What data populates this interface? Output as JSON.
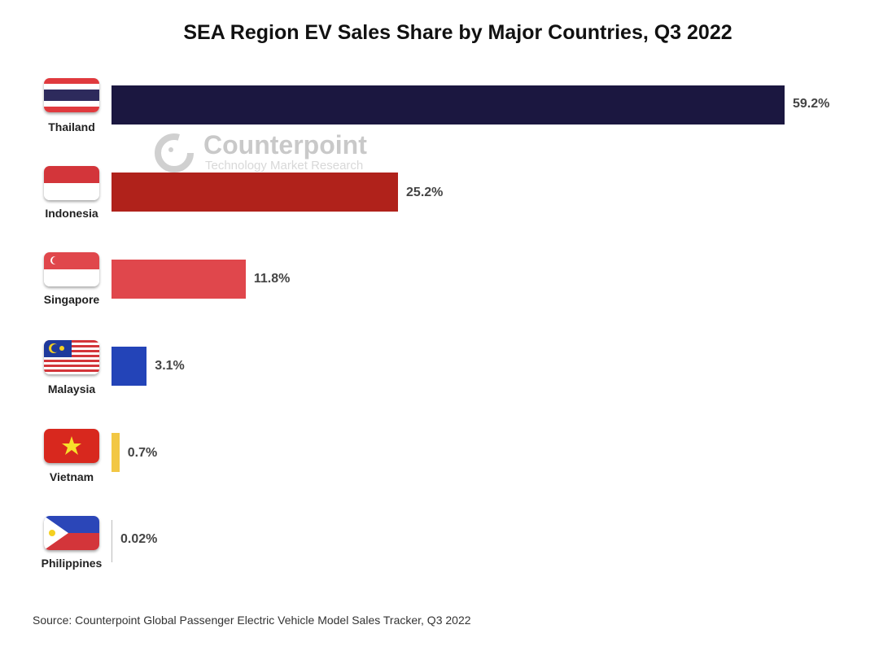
{
  "chart_data": {
    "type": "bar",
    "orientation": "horizontal",
    "title": "SEA Region EV Sales Share by Major Countries, Q3 2022",
    "categories": [
      "Thailand",
      "Indonesia",
      "Singapore",
      "Malaysia",
      "Vietnam",
      "Philippines"
    ],
    "values": [
      59.2,
      25.2,
      11.8,
      3.1,
      0.7,
      0.02
    ],
    "value_labels": [
      "59.2%",
      "25.2%",
      "11.8%",
      "3.1%",
      "0.7%",
      "0.02%"
    ],
    "colors": [
      "#1b1740",
      "#b0221b",
      "#e0474c",
      "#2344b8",
      "#f2c744",
      "#bbbbbb"
    ],
    "unit": "%",
    "xlabel": "",
    "ylabel": "",
    "xlim": [
      0,
      59.2
    ],
    "grid": false,
    "legend": "none"
  },
  "watermark": {
    "brand": "Counterpoint",
    "tagline": "Technology Market Research"
  },
  "source": "Source: Counterpoint Global Passenger Electric Vehicle Model Sales Tracker, Q3 2022"
}
